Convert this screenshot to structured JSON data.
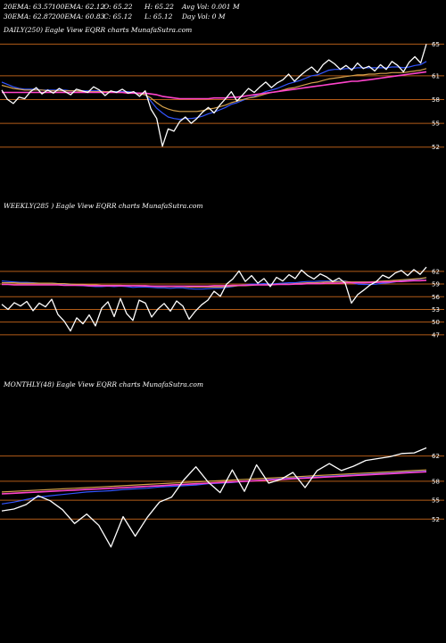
{
  "header": {
    "row1": [
      "20EMA: 63.57",
      "100EMA: 62.12",
      "O: 65.22",
      "H: 65.22",
      "Avg Vol: 0.001 M"
    ],
    "row2": [
      "30EMA: 62.87",
      "200EMA: 60.83",
      "C: 65.12",
      "L: 65.12",
      "Day Vol: 0  M"
    ]
  },
  "colors": {
    "price": "#ffffff",
    "ema_blue": "#3355ff",
    "ema_pink": "#ff44cc",
    "ema_gold": "#d4a04a",
    "gridline": "#b35c18"
  },
  "chart_data": [
    {
      "type": "line",
      "title": "DAILY(250) Eagle  View  EQRR charts MunafaSutra.com",
      "ticks": [
        65,
        61,
        58,
        55,
        52
      ],
      "ylim": [
        50.5,
        66.5
      ],
      "series": [
        {
          "role": "price",
          "values": [
            59.2,
            58.0,
            57.5,
            58.3,
            58.1,
            59.0,
            59.5,
            58.7,
            59.2,
            58.8,
            59.4,
            59.0,
            58.6,
            59.3,
            59.1,
            58.9,
            59.6,
            59.2,
            58.5,
            59.1,
            58.9,
            59.3,
            58.8,
            59.0,
            58.4,
            59.1,
            56.8,
            55.6,
            52.1,
            54.3,
            54.0,
            55.2,
            55.8,
            55.0,
            55.6,
            56.4,
            57.0,
            56.3,
            57.3,
            58.1,
            59.0,
            57.8,
            58.6,
            59.4,
            58.9,
            59.6,
            60.2,
            59.5,
            60.1,
            60.5,
            61.2,
            60.3,
            61.0,
            61.6,
            62.1,
            61.4,
            62.4,
            63.0,
            62.5,
            61.8,
            62.3,
            61.7,
            62.6,
            61.9,
            62.2,
            61.6,
            62.4,
            61.8,
            62.8,
            62.3,
            61.5,
            62.7,
            63.4,
            62.6,
            65.0
          ]
        },
        {
          "role": "ema",
          "color": "blue",
          "values": [
            60.2,
            59.9,
            59.6,
            59.4,
            59.3,
            59.3,
            59.3,
            59.2,
            59.2,
            59.2,
            59.2,
            59.2,
            59.1,
            59.1,
            59.1,
            59.1,
            59.1,
            59.1,
            59.0,
            59.0,
            59.0,
            59.0,
            59.0,
            58.9,
            58.8,
            58.6,
            57.8,
            56.9,
            56.3,
            55.8,
            55.6,
            55.5,
            55.6,
            55.6,
            55.7,
            55.9,
            56.2,
            56.4,
            56.7,
            57.0,
            57.4,
            57.6,
            57.9,
            58.2,
            58.4,
            58.7,
            59.0,
            59.2,
            59.4,
            59.7,
            60.0,
            60.2,
            60.4,
            60.7,
            61.0,
            61.1,
            61.4,
            61.7,
            61.8,
            61.8,
            61.9,
            61.9,
            62.0,
            62.0,
            62.0,
            62.0,
            62.0,
            62.0,
            62.1,
            62.1,
            62.0,
            62.1,
            62.3,
            62.4,
            62.8
          ]
        },
        {
          "role": "ema",
          "color": "gold",
          "values": [
            59.8,
            59.6,
            59.4,
            59.3,
            59.2,
            59.2,
            59.2,
            59.2,
            59.1,
            59.1,
            59.1,
            59.1,
            59.1,
            59.1,
            59.0,
            59.0,
            59.0,
            59.0,
            59.0,
            59.0,
            58.9,
            58.9,
            58.9,
            58.8,
            58.7,
            58.6,
            58.2,
            57.6,
            57.1,
            56.8,
            56.6,
            56.5,
            56.5,
            56.5,
            56.5,
            56.6,
            56.8,
            56.9,
            57.1,
            57.3,
            57.6,
            57.8,
            58.0,
            58.2,
            58.3,
            58.5,
            58.7,
            58.9,
            59.0,
            59.2,
            59.4,
            59.5,
            59.7,
            59.9,
            60.1,
            60.2,
            60.4,
            60.6,
            60.7,
            60.8,
            60.9,
            61.0,
            61.1,
            61.1,
            61.2,
            61.2,
            61.3,
            61.3,
            61.4,
            61.4,
            61.4,
            61.5,
            61.6,
            61.7,
            61.9
          ]
        },
        {
          "role": "ema",
          "color": "pink",
          "values": [
            58.9,
            58.9,
            58.9,
            58.9,
            58.9,
            58.9,
            58.9,
            58.9,
            58.9,
            58.9,
            58.9,
            58.9,
            58.9,
            58.9,
            58.9,
            58.9,
            58.9,
            58.9,
            58.9,
            58.9,
            58.9,
            58.9,
            58.8,
            58.8,
            58.8,
            58.8,
            58.7,
            58.6,
            58.4,
            58.3,
            58.2,
            58.1,
            58.1,
            58.1,
            58.1,
            58.1,
            58.1,
            58.2,
            58.2,
            58.2,
            58.3,
            58.3,
            58.4,
            58.5,
            58.6,
            58.7,
            58.8,
            58.9,
            59.0,
            59.1,
            59.2,
            59.3,
            59.4,
            59.5,
            59.6,
            59.7,
            59.8,
            59.9,
            60.0,
            60.1,
            60.2,
            60.3,
            60.3,
            60.4,
            60.5,
            60.6,
            60.7,
            60.8,
            60.9,
            61.0,
            61.1,
            61.2,
            61.3,
            61.4,
            61.5
          ]
        }
      ]
    },
    {
      "type": "line",
      "title": "WEEKLY(285                     ) Eagle  View  EQRR charts MunafaSutra.com",
      "ticks": [
        62,
        59,
        56,
        53,
        50,
        47
      ],
      "ylim": [
        45.5,
        64.5
      ],
      "series": [
        {
          "role": "price",
          "values": [
            54.2,
            53.0,
            54.6,
            53.8,
            54.9,
            52.7,
            54.5,
            53.6,
            55.4,
            51.8,
            50.2,
            47.9,
            51.0,
            49.6,
            51.7,
            49.1,
            53.3,
            54.8,
            51.3,
            55.6,
            52.0,
            50.4,
            55.2,
            54.5,
            51.2,
            53.1,
            54.4,
            52.6,
            55.0,
            53.8,
            50.7,
            52.6,
            54.1,
            55.2,
            57.3,
            56.1,
            59.0,
            60.2,
            62.1,
            59.6,
            61.0,
            59.2,
            60.3,
            58.4,
            60.6,
            59.7,
            61.2,
            60.3,
            62.3,
            61.0,
            60.2,
            61.4,
            60.7,
            59.6,
            60.4,
            59.2,
            54.5,
            56.5,
            57.6,
            58.8,
            59.6,
            61.1,
            60.4,
            61.6,
            62.2,
            61.0,
            62.4,
            61.3,
            63.0
          ]
        },
        {
          "role": "ema",
          "color": "blue",
          "values": [
            59.7,
            59.6,
            59.5,
            59.4,
            59.4,
            59.3,
            59.2,
            59.2,
            59.2,
            59.1,
            59.0,
            58.8,
            58.7,
            58.6,
            58.5,
            58.4,
            58.4,
            58.5,
            58.4,
            58.5,
            58.4,
            58.2,
            58.3,
            58.3,
            58.2,
            58.1,
            58.1,
            58.0,
            58.1,
            58.1,
            57.9,
            57.8,
            57.8,
            57.9,
            58.0,
            58.0,
            58.2,
            58.4,
            58.7,
            58.8,
            59.0,
            59.0,
            59.1,
            59.0,
            59.1,
            59.2,
            59.3,
            59.3,
            59.5,
            59.6,
            59.6,
            59.7,
            59.7,
            59.7,
            59.7,
            59.7,
            59.3,
            59.0,
            58.9,
            58.9,
            59.0,
            59.2,
            59.3,
            59.5,
            59.8,
            59.9,
            60.1,
            60.2,
            60.5
          ]
        },
        {
          "role": "ema",
          "color": "gold",
          "values": [
            59.3,
            59.3,
            59.3,
            59.2,
            59.2,
            59.2,
            59.2,
            59.2,
            59.2,
            59.1,
            59.1,
            59.0,
            58.9,
            58.9,
            58.8,
            58.8,
            58.7,
            58.7,
            58.7,
            58.7,
            58.6,
            58.6,
            58.6,
            58.5,
            58.5,
            58.4,
            58.4,
            58.4,
            58.4,
            58.4,
            58.3,
            58.3,
            58.3,
            58.3,
            58.3,
            58.3,
            58.4,
            58.5,
            58.6,
            58.6,
            58.7,
            58.8,
            58.8,
            58.8,
            58.9,
            59.0,
            59.0,
            59.1,
            59.2,
            59.3,
            59.3,
            59.4,
            59.5,
            59.5,
            59.6,
            59.6,
            59.5,
            59.5,
            59.5,
            59.5,
            59.6,
            59.7,
            59.8,
            59.9,
            60.0,
            60.1,
            60.2,
            60.3,
            60.5
          ]
        },
        {
          "role": "ema",
          "color": "pink",
          "values": [
            58.9,
            58.9,
            58.8,
            58.8,
            58.8,
            58.8,
            58.8,
            58.8,
            58.8,
            58.8,
            58.7,
            58.7,
            58.7,
            58.7,
            58.6,
            58.6,
            58.6,
            58.6,
            58.6,
            58.6,
            58.6,
            58.6,
            58.6,
            58.6,
            58.5,
            58.5,
            58.5,
            58.5,
            58.5,
            58.5,
            58.5,
            58.5,
            58.5,
            58.5,
            58.6,
            58.6,
            58.6,
            58.7,
            58.7,
            58.7,
            58.8,
            58.8,
            58.8,
            58.8,
            58.9,
            58.9,
            58.9,
            59.0,
            59.0,
            59.1,
            59.1,
            59.1,
            59.2,
            59.2,
            59.2,
            59.3,
            59.3,
            59.3,
            59.3,
            59.4,
            59.4,
            59.5,
            59.5,
            59.6,
            59.6,
            59.7,
            59.8,
            59.8,
            59.9
          ]
        }
      ]
    },
    {
      "type": "line",
      "title": "MONTHLY(48) Eagle  View  EQRR charts MunafaSutra.com",
      "ticks": [
        62,
        58,
        55,
        52
      ],
      "ylim": [
        48.5,
        64.5
      ],
      "series": [
        {
          "role": "price",
          "values": [
            53.3,
            53.6,
            54.3,
            55.7,
            54.9,
            53.5,
            51.3,
            52.8,
            51.0,
            47.6,
            52.4,
            49.3,
            52.3,
            54.7,
            55.5,
            58.2,
            60.3,
            57.9,
            56.2,
            59.8,
            56.4,
            60.6,
            57.7,
            58.3,
            59.4,
            57.0,
            59.7,
            60.8,
            59.7,
            60.4,
            61.3,
            61.6,
            61.9,
            62.4,
            62.5,
            63.3
          ]
        },
        {
          "role": "ema",
          "color": "blue",
          "values": [
            54.4,
            54.7,
            55.1,
            55.5,
            55.7,
            55.9,
            56.1,
            56.3,
            56.4,
            56.5,
            56.7,
            56.8,
            56.9,
            57.1,
            57.2,
            57.3,
            57.4,
            57.6,
            57.7,
            57.8,
            58.0,
            58.1,
            58.3,
            58.4,
            58.5,
            58.6,
            58.7,
            58.8,
            58.9,
            59.0,
            59.1,
            59.2,
            59.3,
            59.4,
            59.5,
            59.6
          ]
        },
        {
          "role": "ema",
          "color": "gold",
          "values": [
            56.3,
            56.4,
            56.5,
            56.6,
            56.7,
            56.8,
            56.9,
            57.0,
            57.1,
            57.2,
            57.3,
            57.4,
            57.5,
            57.6,
            57.7,
            57.8,
            57.9,
            58.0,
            58.1,
            58.2,
            58.3,
            58.4,
            58.5,
            58.6,
            58.7,
            58.8,
            58.9,
            59.0,
            59.1,
            59.2,
            59.3,
            59.4,
            59.5,
            59.6,
            59.7,
            59.8
          ]
        },
        {
          "role": "ema",
          "color": "pink",
          "values": [
            56.0,
            56.1,
            56.2,
            56.3,
            56.4,
            56.5,
            56.6,
            56.7,
            56.8,
            56.9,
            57.0,
            57.1,
            57.2,
            57.3,
            57.4,
            57.5,
            57.6,
            57.7,
            57.8,
            57.9,
            58.0,
            58.1,
            58.2,
            58.3,
            58.4,
            58.5,
            58.6,
            58.7,
            58.8,
            58.9,
            59.0,
            59.1,
            59.2,
            59.3,
            59.4,
            59.5
          ]
        }
      ]
    }
  ]
}
